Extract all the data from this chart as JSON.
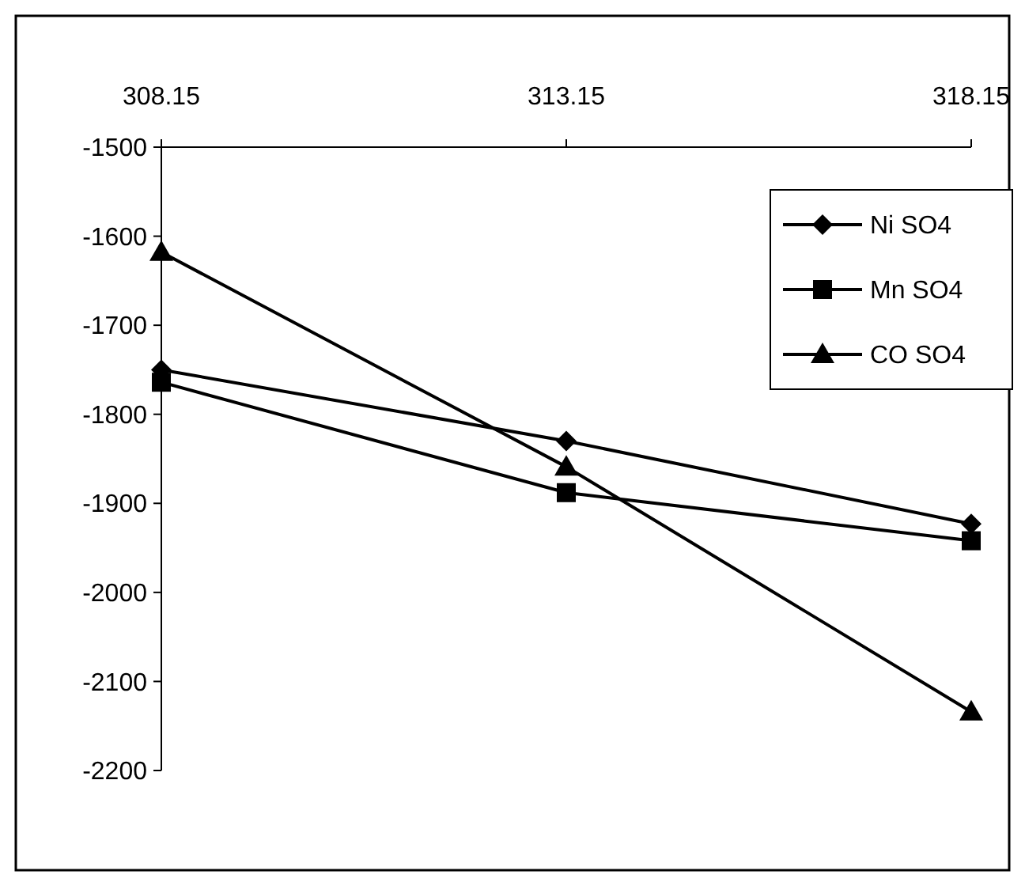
{
  "chart_data": {
    "type": "line",
    "x": [
      308.15,
      313.15,
      318.15
    ],
    "xlim": [
      308.15,
      318.15
    ],
    "xticks": [
      308.15,
      313.15,
      318.15
    ],
    "ylim": [
      -2200,
      -1500
    ],
    "yticks": [
      -2200,
      -2100,
      -2000,
      -1900,
      -1800,
      -1700,
      -1600,
      -1500
    ],
    "legend": "top right",
    "grid": false,
    "series": [
      {
        "name": "Ni SO4",
        "color": "#000000",
        "marker": "diamond",
        "values": [
          -1750,
          -1830,
          -1923
        ]
      },
      {
        "name": "Mn SO4",
        "color": "#000000",
        "marker": "square",
        "values": [
          -1764,
          -1888,
          -1942
        ]
      },
      {
        "name": "CO SO4",
        "color": "#000000",
        "marker": "triangle",
        "values": [
          -1618,
          -1859,
          -2134
        ]
      }
    ]
  }
}
